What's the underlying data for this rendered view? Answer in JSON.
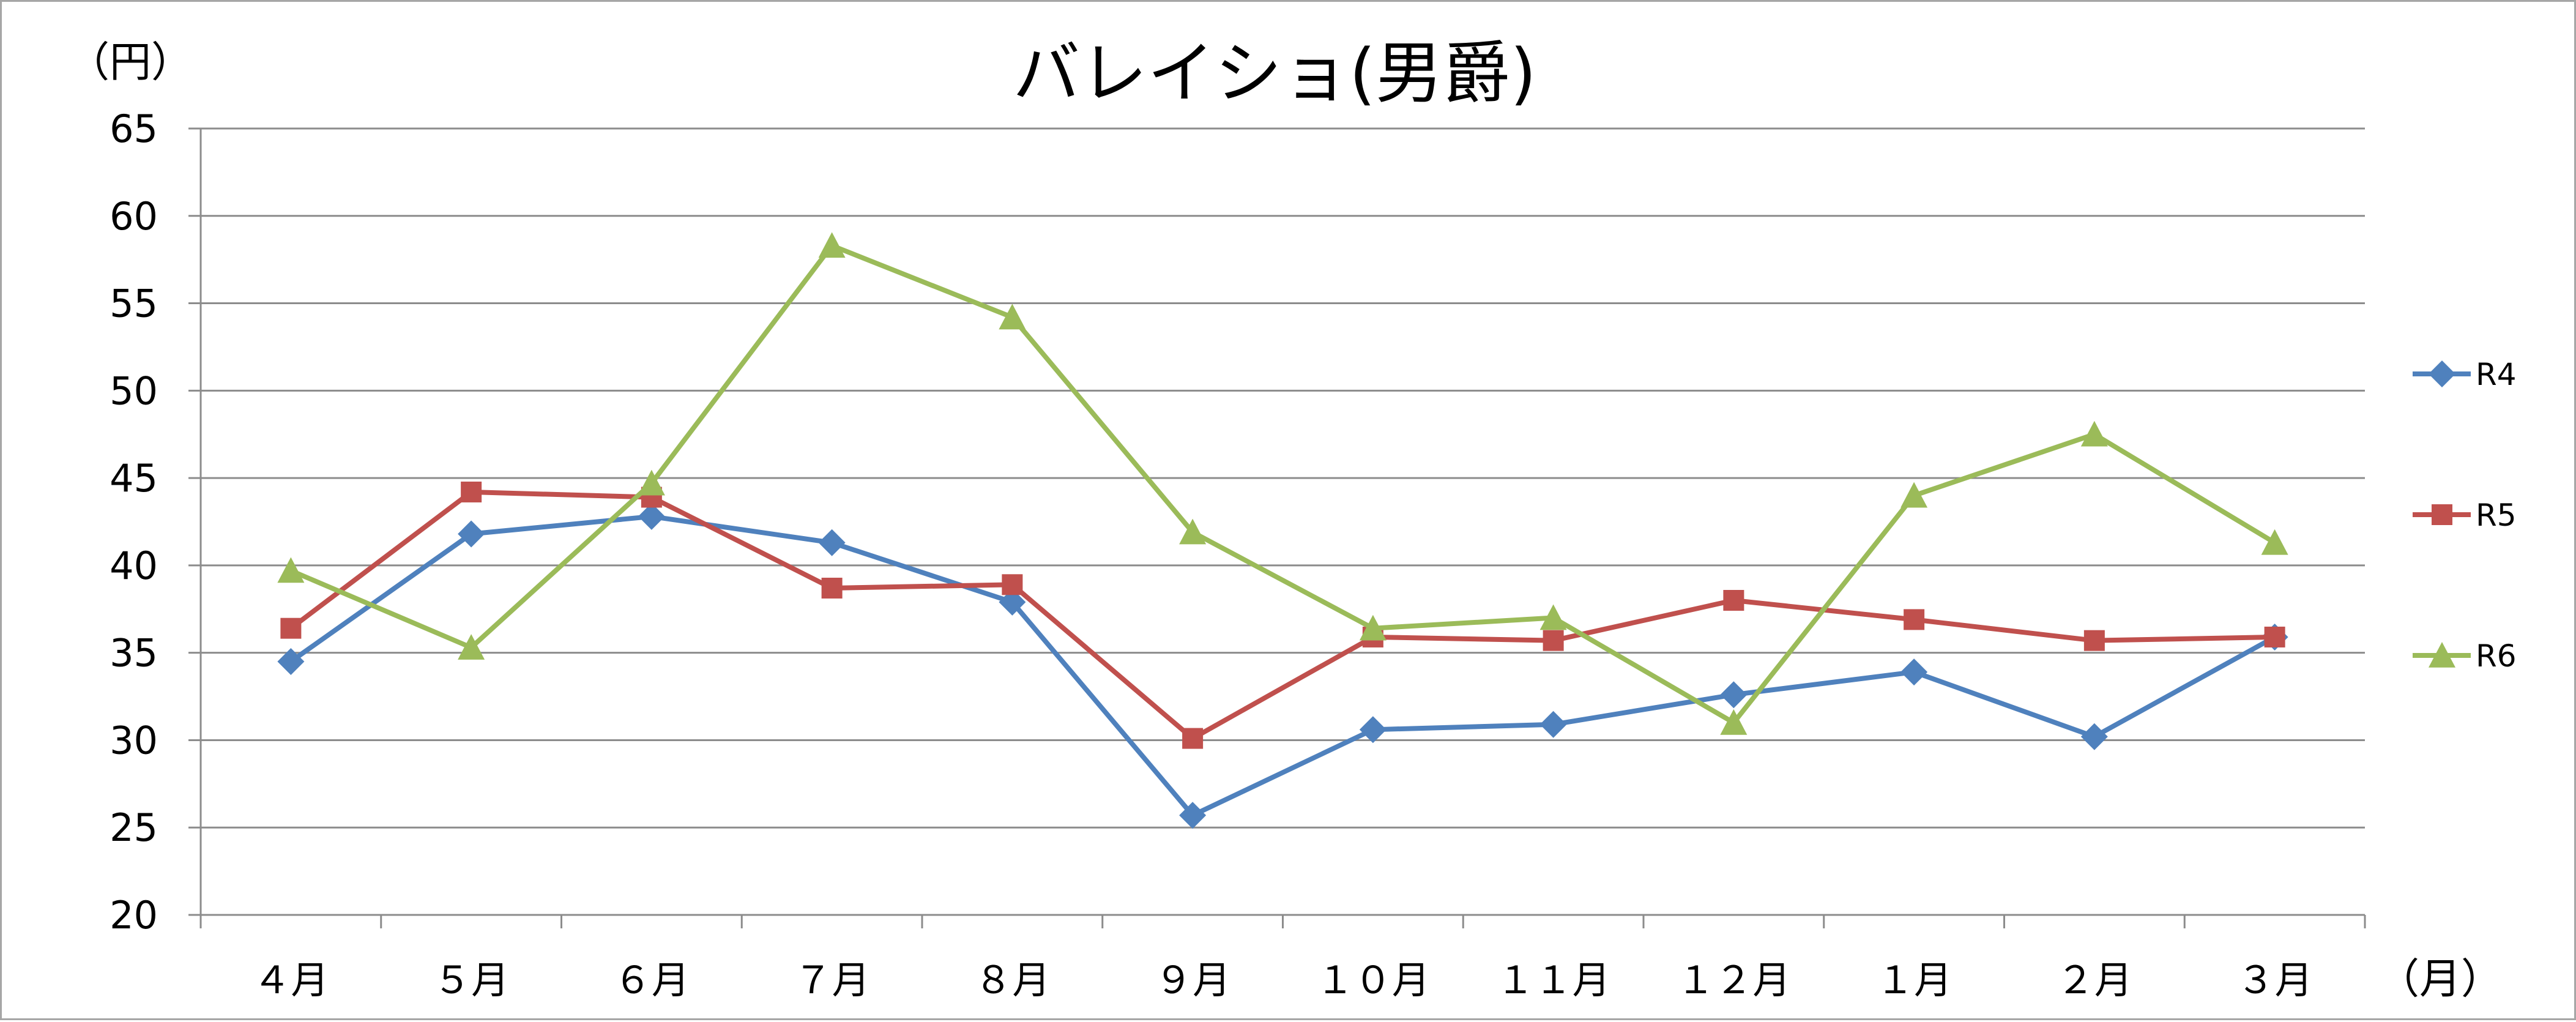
{
  "chart_data": {
    "type": "line",
    "title": "バレイショ(男爵)",
    "ylabel": "（円）",
    "xlabel": "（月）",
    "ylim": [
      20,
      65
    ],
    "ytick_step": 5,
    "grid": true,
    "legend_position": "right",
    "categories": [
      "４月",
      "５月",
      "６月",
      "７月",
      "８月",
      "９月",
      "１０月",
      "１１月",
      "１２月",
      "１月",
      "２月",
      "３月"
    ],
    "series": [
      {
        "name": "R4",
        "color": "#4f81bd",
        "marker": "diamond",
        "values": [
          34.5,
          41.8,
          42.8,
          41.3,
          37.9,
          25.7,
          30.6,
          30.9,
          32.6,
          33.9,
          30.2,
          35.9
        ]
      },
      {
        "name": "R5",
        "color": "#c0504d",
        "marker": "square",
        "values": [
          36.4,
          44.2,
          43.9,
          38.7,
          38.9,
          30.1,
          35.9,
          35.7,
          38.0,
          36.9,
          35.7,
          35.9
        ]
      },
      {
        "name": "R6",
        "color": "#9bbb59",
        "marker": "triangle",
        "values": [
          39.7,
          35.3,
          44.7,
          58.3,
          54.2,
          41.9,
          36.4,
          37.0,
          31.0,
          44.0,
          47.5,
          41.3
        ]
      }
    ]
  }
}
